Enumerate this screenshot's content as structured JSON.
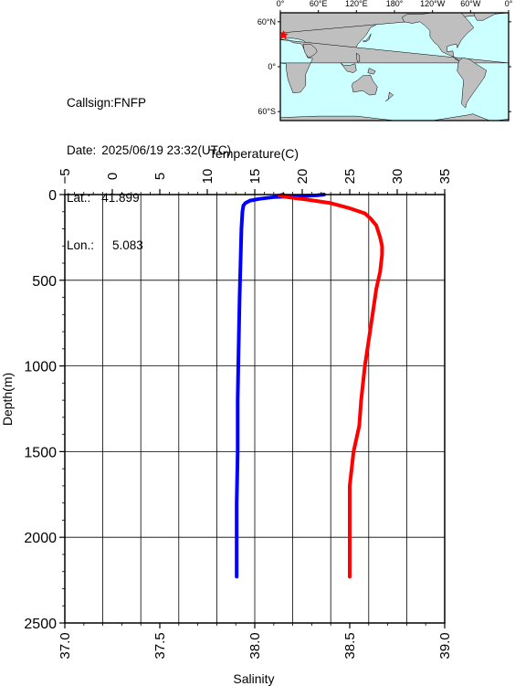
{
  "station": {
    "callsign_label": "Callsign:",
    "callsign": "FNFP",
    "date_label": "Date:",
    "date": "2025/06/19 23:32(UTC)",
    "lat_label": "Lat.:",
    "lat": "41.899",
    "lon_label": "Lon.:",
    "lon": "5.083"
  },
  "map": {
    "lon_ticks": [
      "0°",
      "60°E",
      "120°E",
      "180°",
      "120°W",
      "60°W",
      "0°"
    ],
    "lat_ticks": [
      "60°N",
      "0°",
      "60°S"
    ],
    "ocean_color": "#ccffff",
    "land_color": "#bfbfbf",
    "marker_color": "#ff0000",
    "marker": {
      "lon": 5.083,
      "lat": 41.899
    }
  },
  "chart_data": {
    "type": "line",
    "ylabel": "Depth(m)",
    "ylim": [
      2500,
      0
    ],
    "y_ticks": [
      0,
      500,
      1000,
      1500,
      2000,
      2500
    ],
    "top_axis": {
      "label": "Temperature(C)",
      "range": [
        -5,
        35
      ],
      "ticks": [
        -5,
        0,
        5,
        10,
        15,
        20,
        25,
        30,
        35
      ]
    },
    "bottom_axis": {
      "label": "Salinity",
      "range": [
        37.0,
        39.0
      ],
      "ticks": [
        "37.0",
        "37.5",
        "38.0",
        "38.5",
        "39.0"
      ]
    },
    "grid": true,
    "series": [
      {
        "axis": "temperature",
        "color": "#0000ff",
        "points": [
          [
            22.3,
            0
          ],
          [
            21.5,
            5
          ],
          [
            19.0,
            10
          ],
          [
            17.0,
            15
          ],
          [
            15.5,
            25
          ],
          [
            14.5,
            35
          ],
          [
            14.0,
            50
          ],
          [
            13.8,
            65
          ],
          [
            13.7,
            100
          ],
          [
            13.6,
            200
          ],
          [
            13.5,
            400
          ],
          [
            13.4,
            600
          ],
          [
            13.3,
            900
          ],
          [
            13.2,
            1200
          ],
          [
            13.2,
            1500
          ],
          [
            13.1,
            1800
          ],
          [
            13.1,
            2000
          ],
          [
            13.1,
            2230
          ]
        ]
      },
      {
        "axis": "salinity",
        "color": "#ff0000",
        "points": [
          [
            38.15,
            0
          ],
          [
            38.13,
            5
          ],
          [
            38.17,
            15
          ],
          [
            38.28,
            30
          ],
          [
            38.4,
            50
          ],
          [
            38.5,
            80
          ],
          [
            38.58,
            110
          ],
          [
            38.61,
            140
          ],
          [
            38.64,
            180
          ],
          [
            38.66,
            250
          ],
          [
            38.67,
            300
          ],
          [
            38.67,
            350
          ],
          [
            38.66,
            450
          ],
          [
            38.64,
            550
          ],
          [
            38.62,
            700
          ],
          [
            38.6,
            850
          ],
          [
            38.58,
            1000
          ],
          [
            38.56,
            1200
          ],
          [
            38.55,
            1350
          ],
          [
            38.52,
            1500
          ],
          [
            38.51,
            1600
          ],
          [
            38.5,
            1700
          ],
          [
            38.5,
            2000
          ],
          [
            38.5,
            2230
          ]
        ]
      }
    ]
  }
}
